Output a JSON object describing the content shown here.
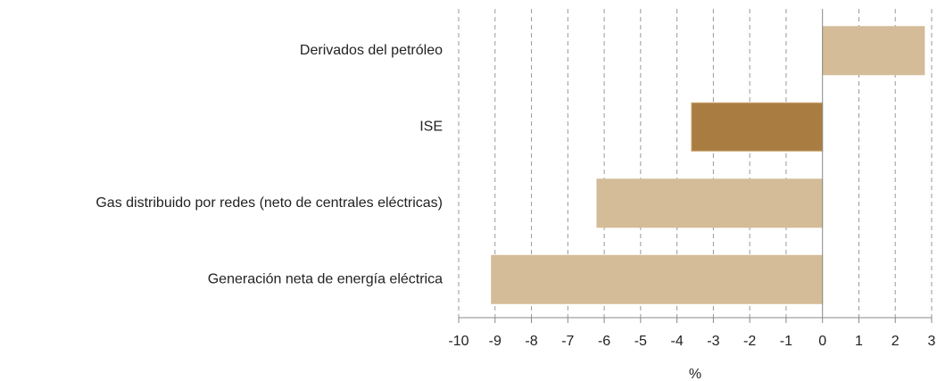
{
  "chart_data": {
    "type": "bar",
    "orientation": "horizontal",
    "categories": [
      "Derivados del petróleo",
      "ISE",
      "Gas distribuido por redes (neto de centrales eléctricas)",
      "Generación neta de energía eléctrica"
    ],
    "values": [
      2.8,
      -3.6,
      -6.2,
      -9.1
    ],
    "colors": [
      "#d4bc98",
      "#a97d42",
      "#d4bc98",
      "#d4bc98"
    ],
    "xlabel": "%",
    "xlim": [
      -10,
      3
    ],
    "xticks": [
      -10,
      -9,
      -8,
      -7,
      -6,
      -5,
      -4,
      -3,
      -2,
      -1,
      0,
      1,
      2,
      3
    ],
    "grid": true
  }
}
